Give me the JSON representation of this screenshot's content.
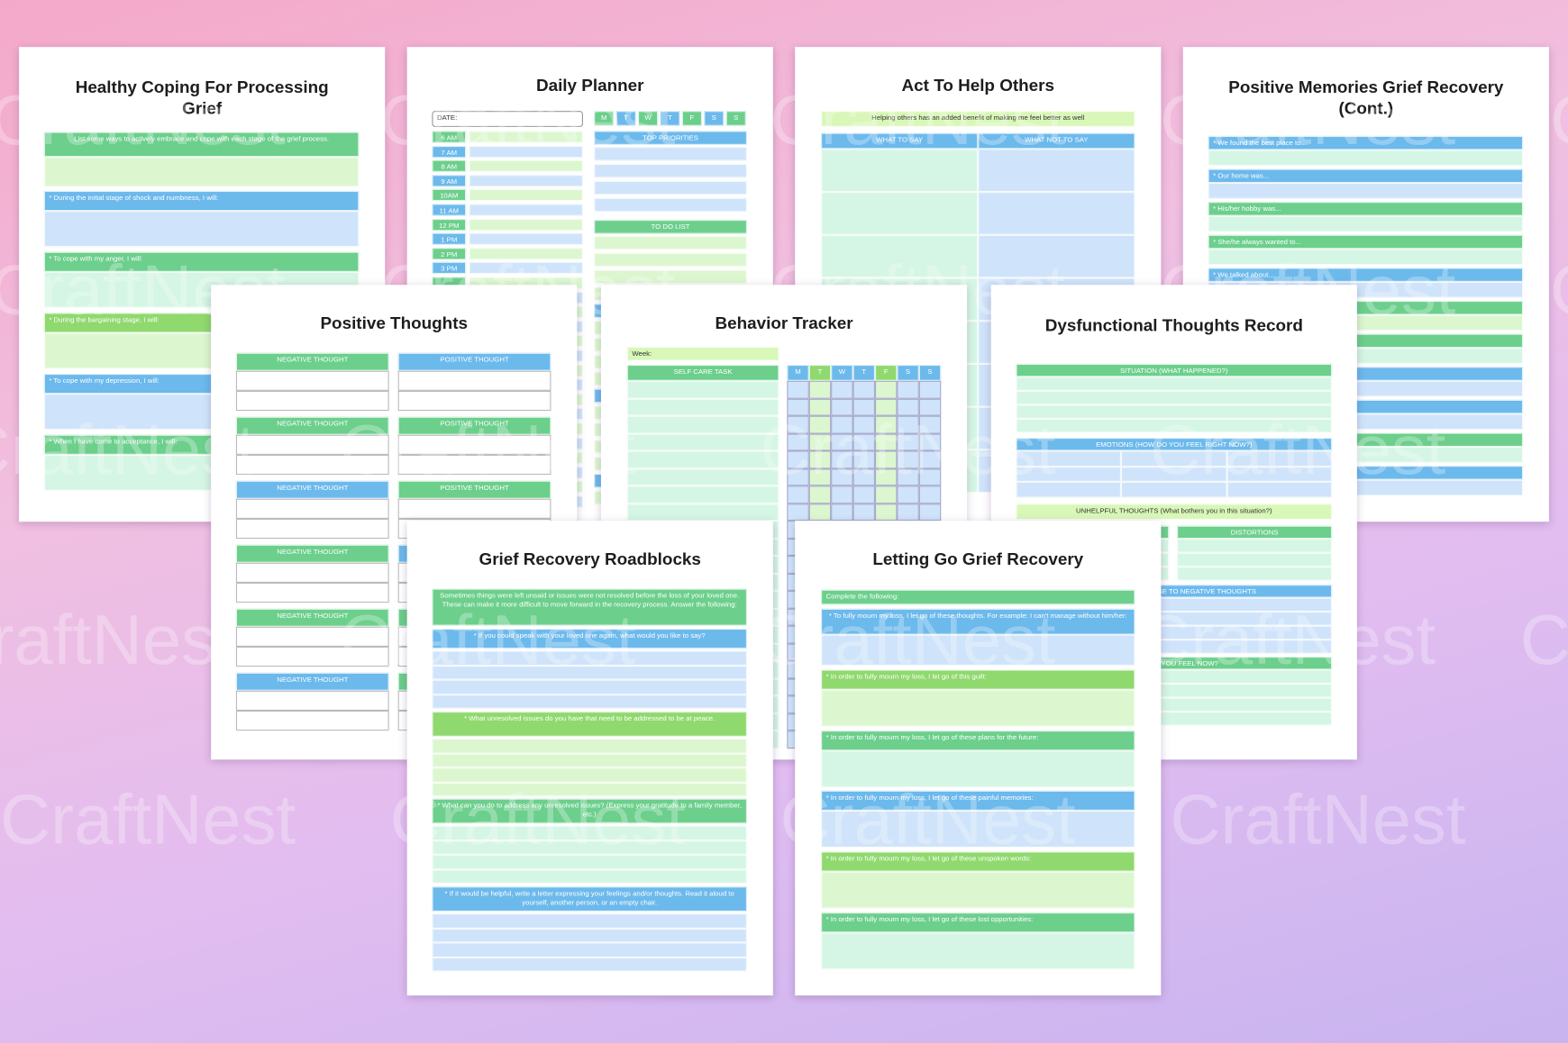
{
  "watermark": "CraftNest",
  "pages": [
    {
      "title": "Healthy Coping For Processing Grief",
      "intro": "List some ways to actively embrace and cope with each stage of the grief process.",
      "prompts": [
        "* During the initial stage of shock and numbness, I will:",
        "* To cope with my anger, I will:",
        "* During the bargaining stage, I will:",
        "* To cope with my depression, I will:",
        "* When I have come to acceptance, I will:"
      ]
    },
    {
      "title": "Daily Planner",
      "date_label": "DATE:",
      "hours": [
        "6 AM",
        "7 AM",
        "8 AM",
        "9 AM",
        "10AM",
        "11 AM",
        "12 PM",
        "1 PM",
        "2 PM",
        "3 PM"
      ],
      "days": [
        "M",
        "T",
        "W",
        "T",
        "F",
        "S",
        "S"
      ],
      "priorities": "TOP PRIORITIES",
      "todo": "TO DO LIST"
    },
    {
      "title": "Act To Help Others",
      "banner": "Helping others has an added benefit of making me feel better as well",
      "columns": [
        "WHAT TO SAY",
        "WHAT NOT TO SAY"
      ]
    },
    {
      "title": "Positive Memories Grief Recovery (Cont.)",
      "prompts": [
        "* We found the best place to...",
        "* Our home was...",
        "* His/her hobby was...",
        "* She/he always wanted to...",
        "* We talked about..."
      ]
    },
    {
      "title": "Positive Thoughts",
      "left": "NEGATIVE THOUGHT",
      "right": "POSITIVE THOUGHT"
    },
    {
      "title": "Behavior Tracker",
      "week": "Week:",
      "task": "SELF CARE TASK",
      "days": [
        "M",
        "T",
        "W",
        "T",
        "F",
        "S",
        "S"
      ]
    },
    {
      "title": "Dysfunctional Thoughts Record",
      "sections": [
        "SITUATION (WHAT HAPPENED?)",
        "EMOTIONS (HOW DO YOU FEEL RIGHT NOW?)",
        "UNHELPFUL THOUGHTS (What bothers you in this situation?)",
        "DISTORTIONS",
        "RATIONAL RESPONSE TO NEGATIVE THOUGHTS",
        "HOW DO YOU FEEL NOW?"
      ]
    },
    {
      "title": "Grief Recovery Roadblocks",
      "intro": "Sometimes things were left unsaid or issues were not resolved before the loss of your loved one. These can make it more difficult to move forward in the recovery process. Answer the following:",
      "prompts": [
        "* If you could speak with your loved one again, what would you like to say?",
        "* What unresolved issues do you have that need to be addressed to be at peace.",
        "* What can you do to address any unresolved issues? (Express your gratitude to a family member, etc.)",
        "* If it would be helpful, write a letter expressing your feelings and/or thoughts. Read it aloud to yourself, another person, or an empty chair."
      ]
    },
    {
      "title": "Letting Go Grief Recovery",
      "intro": "Complete the following:",
      "prompts": [
        "* To fully mourn my loss, I let go of these thoughts. For example: I can't manage without him/her:",
        "* In order to fully mourn my loss, I let go of this guilt:",
        "* In order to fully mourn my loss, I let go of these plans for the future:",
        "* In order to fully mourn my loss, I let go of these painful memories:",
        "* In order to fully mourn my loss, I let go of these unspoken words:",
        "* In order to fully mourn my loss, I let go of these lost opportunities:"
      ]
    }
  ]
}
